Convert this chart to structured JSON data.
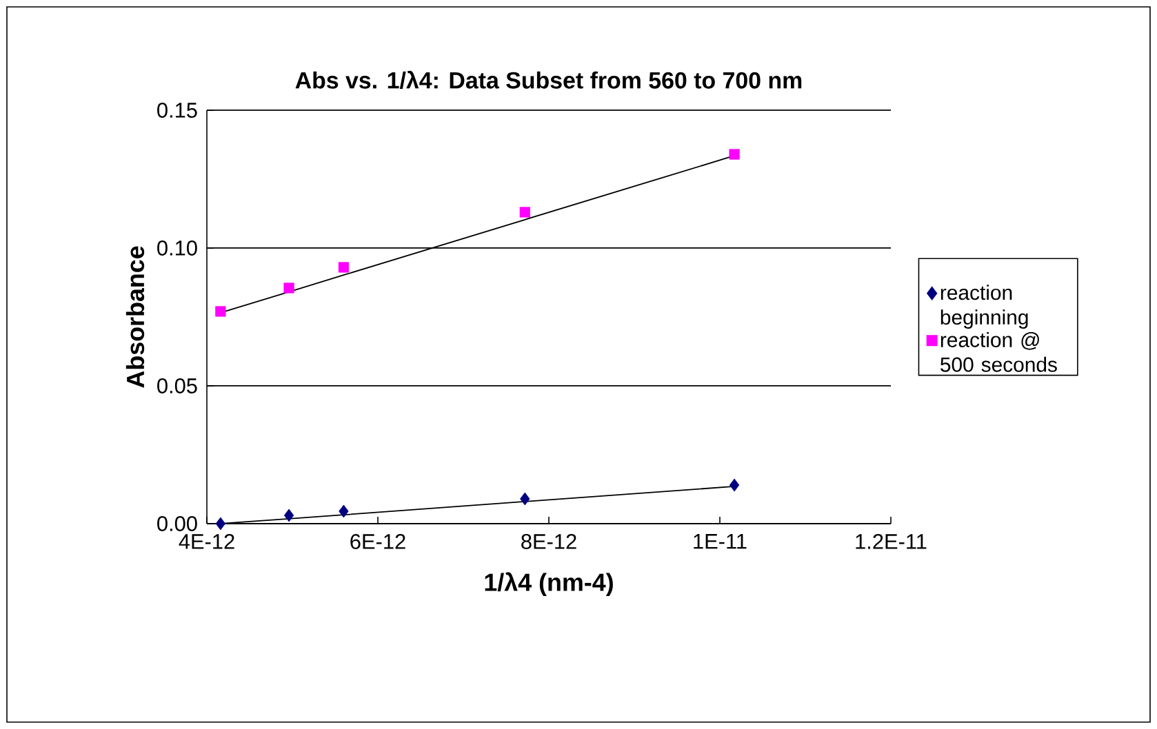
{
  "chart_data": {
    "type": "scatter",
    "title": "Abs vs. 1/λ4: Data  Subset from 560 to 700 nm",
    "xlabel": "1/λ4 (nm-4)",
    "ylabel": "Absorbance",
    "xlim": [
      4e-12,
      1.2e-11
    ],
    "xticks": [
      {
        "value": 4e-12,
        "label": "4E-12"
      },
      {
        "value": 6e-12,
        "label": "6E-12"
      },
      {
        "value": 8e-12,
        "label": "8E-12"
      },
      {
        "value": 1e-11,
        "label": "1E-11"
      },
      {
        "value": 1.2e-11,
        "label": "1.2E-11"
      }
    ],
    "ylim": [
      0,
      0.15
    ],
    "yticks": [
      {
        "value": 0,
        "label": "0.00"
      },
      {
        "value": 0.05,
        "label": "0.05"
      },
      {
        "value": 0.1,
        "label": "0.10"
      },
      {
        "value": 0.15,
        "label": "0.15"
      }
    ],
    "grid": "y",
    "legend": "right",
    "x": [
      4.16e-12,
      4.96e-12,
      5.6e-12,
      7.72e-12,
      1.017e-11
    ],
    "series": [
      {
        "name": "reaction beginning",
        "color": "#000080",
        "marker": "diamond",
        "values": [
          0.0,
          0.003,
          0.0045,
          0.009,
          0.014
        ]
      },
      {
        "name": "reaction @ 500 seconds",
        "color": "#ff00ff",
        "marker": "square",
        "values": [
          0.077,
          0.0855,
          0.093,
          0.113,
          0.134
        ]
      },
      {
        "type": "line",
        "color": "#000000",
        "marker": "none",
        "values": [
          0.0,
          0.0018,
          0.0032,
          0.008,
          0.0135
        ]
      },
      {
        "type": "line",
        "color": "#000000",
        "marker": "none",
        "values": [
          0.0765,
          0.0841,
          0.0902,
          0.1103,
          0.1335
        ]
      }
    ]
  }
}
